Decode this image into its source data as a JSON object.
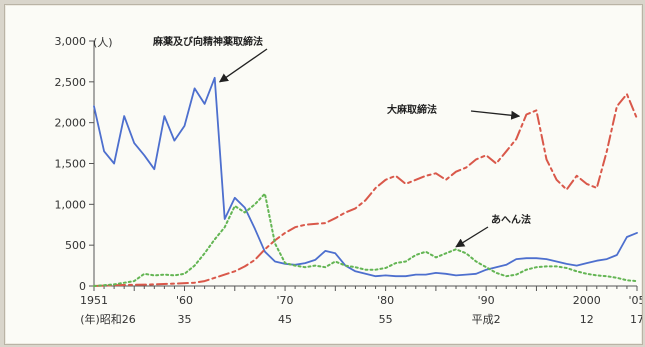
{
  "chart_data": {
    "type": "line",
    "ylabel": "(人)",
    "ylim": [
      0,
      3000
    ],
    "yticks": [
      0,
      500,
      1000,
      1500,
      2000,
      2500,
      3000
    ],
    "ytick_labels": [
      "0",
      "500",
      "1,000",
      "1,500",
      "2,000",
      "2,500",
      "3,000"
    ],
    "xlim": [
      1951,
      2005
    ],
    "xticks": [
      {
        "year": 1951,
        "top": "1951",
        "bottom": "(年)昭和26"
      },
      {
        "year": 1960,
        "top": "'60",
        "bottom": "35"
      },
      {
        "year": 1970,
        "top": "'70",
        "bottom": "45"
      },
      {
        "year": 1980,
        "top": "'80",
        "bottom": "55"
      },
      {
        "year": 1990,
        "top": "'90",
        "bottom": "平成2"
      },
      {
        "year": 2000,
        "top": "2000",
        "bottom": "12"
      },
      {
        "year": 2005,
        "top": "'05",
        "bottom": "17"
      }
    ],
    "series": [
      {
        "name": "麻薬及び向精神薬取締法",
        "color": "#4d6fce",
        "style": "solid",
        "x": [
          1951,
          1952,
          1953,
          1954,
          1955,
          1956,
          1957,
          1958,
          1959,
          1960,
          1961,
          1962,
          1963,
          1964,
          1965,
          1966,
          1967,
          1968,
          1969,
          1970,
          1971,
          1972,
          1973,
          1974,
          1975,
          1976,
          1977,
          1978,
          1979,
          1980,
          1981,
          1982,
          1983,
          1984,
          1985,
          1986,
          1987,
          1988,
          1989,
          1990,
          1991,
          1992,
          1993,
          1994,
          1995,
          1996,
          1997,
          1998,
          1999,
          2000,
          2001,
          2002,
          2003,
          2004,
          2005
        ],
        "values": [
          2200,
          1650,
          1500,
          2080,
          1750,
          1600,
          1430,
          2080,
          1780,
          1960,
          2420,
          2230,
          2550,
          820,
          1080,
          960,
          700,
          420,
          300,
          270,
          260,
          280,
          320,
          430,
          400,
          250,
          180,
          150,
          120,
          130,
          120,
          120,
          140,
          140,
          160,
          150,
          130,
          140,
          150,
          200,
          230,
          260,
          330,
          340,
          340,
          330,
          300,
          270,
          250,
          280,
          310,
          330,
          380,
          600,
          650
        ]
      },
      {
        "name": "大麻取締法",
        "color": "#d9584a",
        "style": "dashed",
        "x": [
          1951,
          1953,
          1955,
          1957,
          1959,
          1961,
          1962,
          1963,
          1964,
          1965,
          1966,
          1967,
          1968,
          1969,
          1970,
          1971,
          1972,
          1973,
          1974,
          1975,
          1976,
          1977,
          1978,
          1979,
          1980,
          1981,
          1982,
          1983,
          1984,
          1985,
          1986,
          1987,
          1988,
          1989,
          1990,
          1991,
          1992,
          1993,
          1994,
          1995,
          1996,
          1997,
          1998,
          1999,
          2000,
          2001,
          2002,
          2003,
          2004,
          2005
        ],
        "values": [
          0,
          10,
          15,
          20,
          30,
          40,
          60,
          100,
          140,
          180,
          240,
          320,
          450,
          560,
          650,
          720,
          750,
          760,
          770,
          830,
          900,
          950,
          1050,
          1200,
          1300,
          1350,
          1250,
          1300,
          1350,
          1380,
          1300,
          1400,
          1450,
          1550,
          1600,
          1500,
          1650,
          1800,
          2100,
          2150,
          1550,
          1300,
          1180,
          1350,
          1250,
          1200,
          1650,
          2200,
          2350,
          2050
        ]
      },
      {
        "name": "あへん法",
        "color": "#63b553",
        "style": "dotted",
        "x": [
          1951,
          1953,
          1955,
          1956,
          1957,
          1958,
          1959,
          1960,
          1961,
          1962,
          1963,
          1964,
          1965,
          1966,
          1967,
          1968,
          1969,
          1970,
          1971,
          1972,
          1973,
          1974,
          1975,
          1976,
          1977,
          1978,
          1979,
          1980,
          1981,
          1982,
          1983,
          1984,
          1985,
          1986,
          1987,
          1988,
          1989,
          1990,
          1991,
          1992,
          1993,
          1994,
          1995,
          1996,
          1997,
          1998,
          1999,
          2000,
          2001,
          2002,
          2003,
          2004,
          2005
        ],
        "values": [
          0,
          20,
          60,
          150,
          130,
          140,
          130,
          150,
          250,
          400,
          570,
          720,
          980,
          900,
          1000,
          1130,
          520,
          280,
          250,
          230,
          250,
          230,
          300,
          250,
          230,
          200,
          200,
          220,
          280,
          300,
          380,
          420,
          350,
          400,
          450,
          400,
          300,
          230,
          160,
          120,
          140,
          200,
          230,
          240,
          240,
          220,
          180,
          150,
          130,
          120,
          100,
          70,
          60
        ]
      }
    ],
    "annotations": [
      {
        "text": "麻薬及び向精神薬取締法",
        "series": 0,
        "target_year": 1963.5,
        "target_value": 2500
      },
      {
        "text": "大麻取締法",
        "series": 1,
        "target_year": 1993.3,
        "target_value": 2080
      },
      {
        "text": "あへん法",
        "series": 2,
        "target_year": 1987,
        "target_value": 480
      }
    ]
  }
}
